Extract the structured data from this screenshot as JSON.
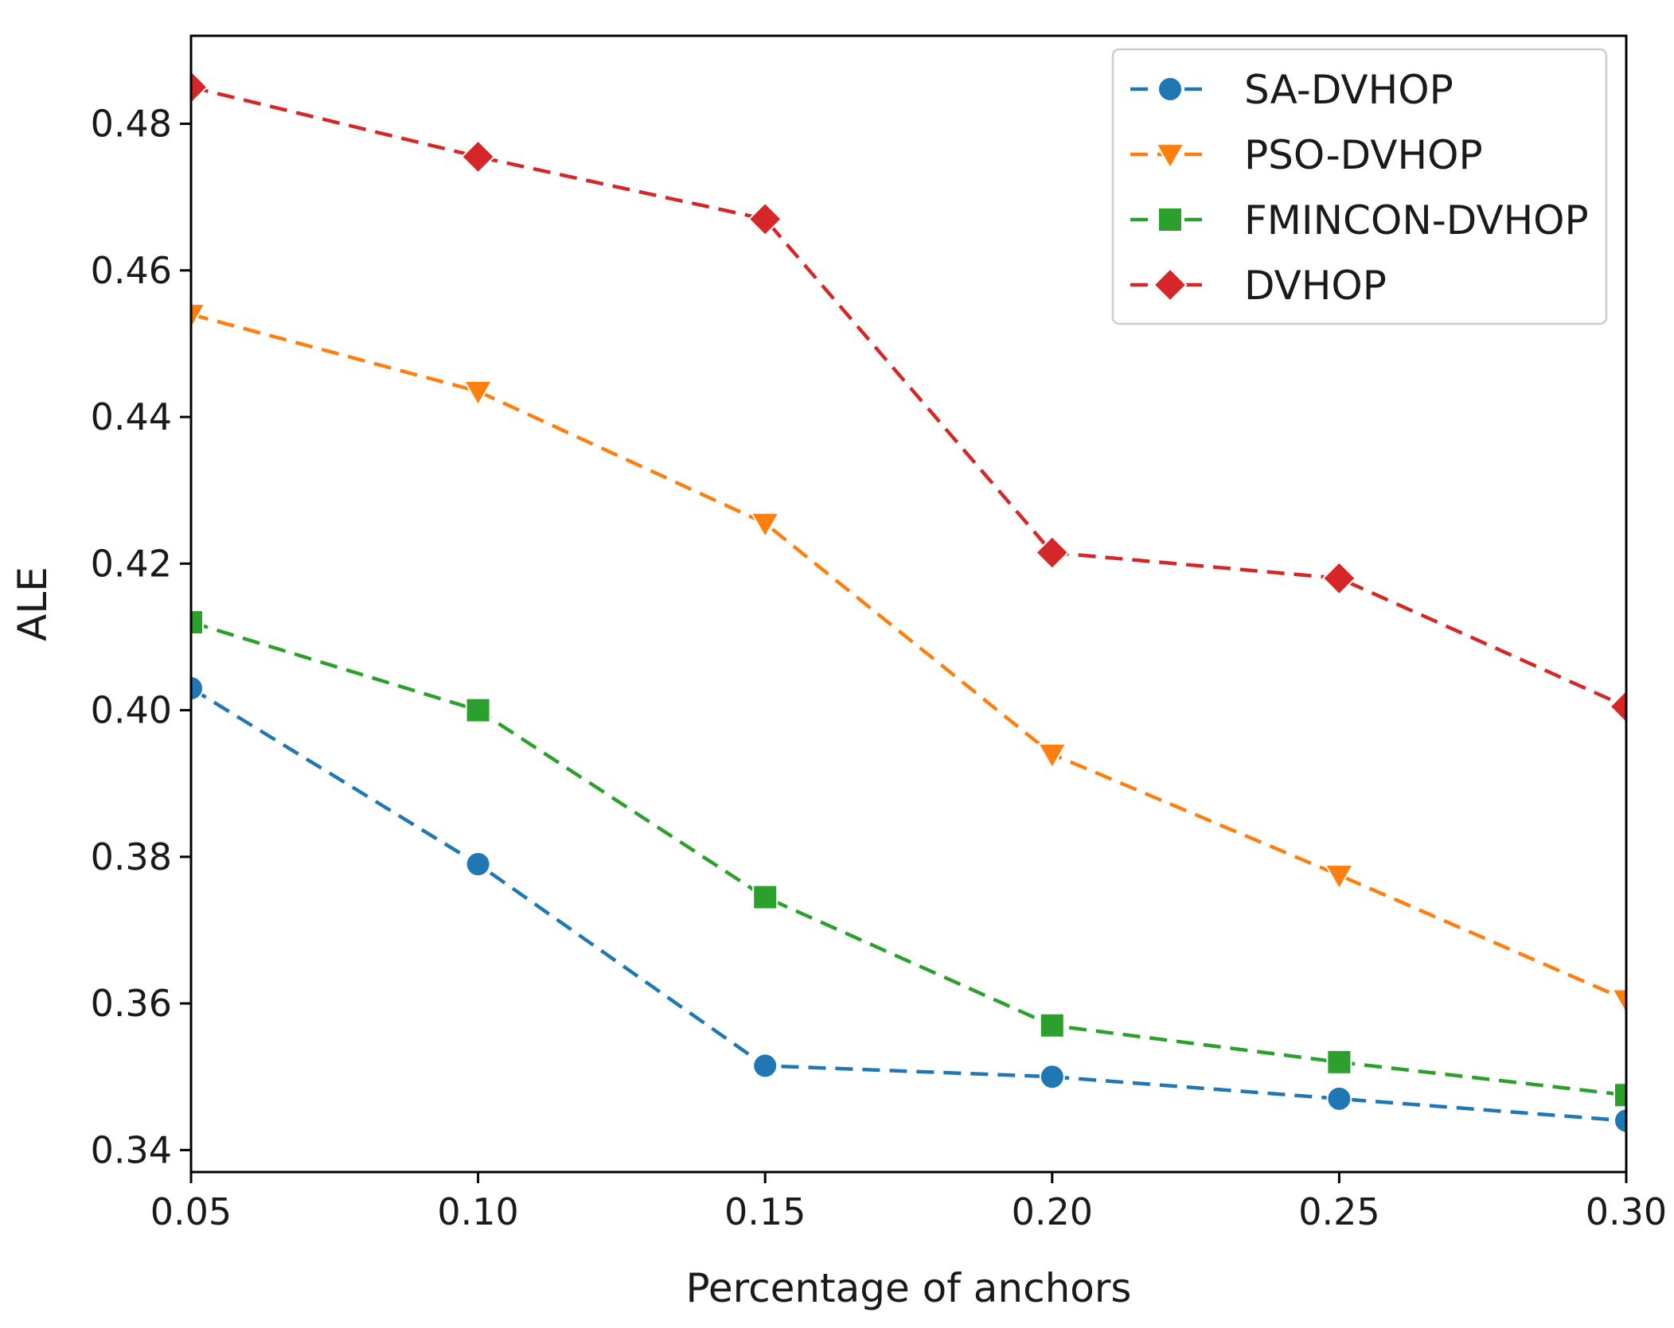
{
  "chart_data": {
    "type": "line",
    "title": "",
    "xlabel": "Percentage of anchors",
    "ylabel": "ALE",
    "x": [
      0.05,
      0.1,
      0.15,
      0.2,
      0.25,
      0.3
    ],
    "x_tick_labels": [
      "0.05",
      "0.10",
      "0.15",
      "0.20",
      "0.25",
      "0.30"
    ],
    "xlim": [
      0.05,
      0.3
    ],
    "y_ticks": [
      0.34,
      0.36,
      0.38,
      0.4,
      0.42,
      0.44,
      0.46,
      0.48
    ],
    "y_tick_labels": [
      "0.34",
      "0.36",
      "0.38",
      "0.40",
      "0.42",
      "0.44",
      "0.46",
      "0.48"
    ],
    "ylim": [
      0.337,
      0.492
    ],
    "grid": false,
    "legend_position": "top-right",
    "series": [
      {
        "name": "SA-DVHOP",
        "color": "#1f77b4",
        "marker": "circle",
        "linestyle": "dashed",
        "values": [
          0.403,
          0.379,
          0.3515,
          0.35,
          0.347,
          0.344
        ]
      },
      {
        "name": "PSO-DVHOP",
        "color": "#ff7f0e",
        "marker": "triangle-down",
        "linestyle": "dashed",
        "values": [
          0.454,
          0.4435,
          0.4255,
          0.394,
          0.3775,
          0.3605
        ]
      },
      {
        "name": "FMINCON-DVHOP",
        "color": "#2ca02c",
        "marker": "square",
        "linestyle": "dashed",
        "values": [
          0.412,
          0.4,
          0.3745,
          0.357,
          0.352,
          0.3475
        ]
      },
      {
        "name": "DVHOP",
        "color": "#d62728",
        "marker": "diamond",
        "linestyle": "dashed",
        "values": [
          0.485,
          0.4755,
          0.467,
          0.4215,
          0.418,
          0.4005
        ]
      }
    ]
  }
}
